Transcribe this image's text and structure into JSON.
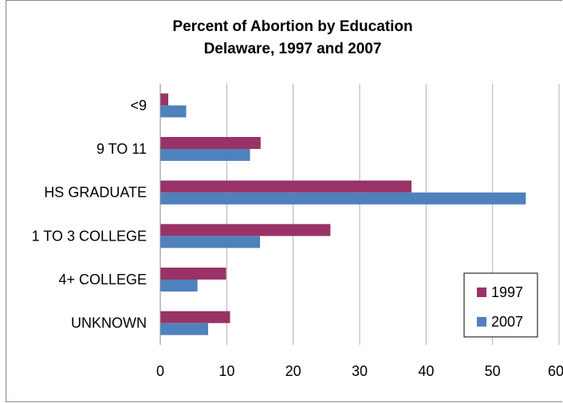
{
  "chart_data": {
    "type": "bar",
    "orientation": "horizontal",
    "title": [
      "Percent of Abortion by Education",
      "Delaware, 1997 and 2007"
    ],
    "categories": [
      "<9",
      "9 TO 11",
      "HS GRADUATE",
      "1 TO 3 COLLEGE",
      "4+ COLLEGE",
      "UNKNOWN"
    ],
    "series": [
      {
        "name": "1997",
        "color": "#993366",
        "values": [
          1.2,
          15.1,
          37.8,
          25.6,
          9.9,
          10.5
        ]
      },
      {
        "name": "2007",
        "color": "#4F81BD",
        "values": [
          3.9,
          13.5,
          55.0,
          15.0,
          5.6,
          7.2
        ]
      }
    ],
    "xlim": [
      0,
      60
    ],
    "xticks": [
      "0",
      "10",
      "20",
      "30",
      "40",
      "50",
      "60"
    ],
    "grid": "vertical",
    "legend_position": "bottom-right"
  }
}
